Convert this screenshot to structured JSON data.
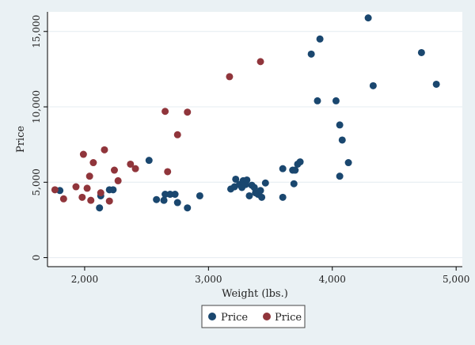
{
  "chart_data": {
    "type": "scatter",
    "title": "",
    "xlabel": "Weight (lbs.)",
    "ylabel": "Price",
    "xlim": [
      1700,
      5050
    ],
    "ylim": [
      -600,
      16300
    ],
    "x_ticks": [
      2000,
      3000,
      4000,
      5000
    ],
    "x_tick_labels": [
      "2,000",
      "3,000",
      "4,000",
      "5,000"
    ],
    "y_ticks": [
      0,
      5000,
      10000,
      15000
    ],
    "y_tick_labels": [
      "0",
      "5,000",
      "10,000",
      "15,000"
    ],
    "grid": true,
    "legend": "bottom",
    "series": [
      {
        "name": "Price",
        "color": "#1a476f",
        "points": [
          [
            1800,
            4450
          ],
          [
            2120,
            3300
          ],
          [
            2130,
            4100
          ],
          [
            2200,
            4500
          ],
          [
            2230,
            4500
          ],
          [
            2520,
            6450
          ],
          [
            2580,
            3850
          ],
          [
            2640,
            3800
          ],
          [
            2650,
            4200
          ],
          [
            2690,
            4200
          ],
          [
            2730,
            4200
          ],
          [
            2750,
            3650
          ],
          [
            2830,
            3300
          ],
          [
            2930,
            4100
          ],
          [
            3180,
            4550
          ],
          [
            3210,
            4700
          ],
          [
            3220,
            5200
          ],
          [
            3250,
            4850
          ],
          [
            3270,
            4650
          ],
          [
            3280,
            5100
          ],
          [
            3300,
            4850
          ],
          [
            3310,
            5150
          ],
          [
            3330,
            4100
          ],
          [
            3350,
            4800
          ],
          [
            3370,
            4650
          ],
          [
            3380,
            4300
          ],
          [
            3400,
            4200
          ],
          [
            3420,
            4450
          ],
          [
            3430,
            4000
          ],
          [
            3460,
            4950
          ],
          [
            3600,
            5900
          ],
          [
            3600,
            4000
          ],
          [
            3680,
            5800
          ],
          [
            3690,
            4900
          ],
          [
            3700,
            5800
          ],
          [
            3720,
            6200
          ],
          [
            3740,
            6350
          ],
          [
            3830,
            13500
          ],
          [
            3880,
            10400
          ],
          [
            3900,
            14500
          ],
          [
            4030,
            10400
          ],
          [
            4060,
            8800
          ],
          [
            4060,
            5400
          ],
          [
            4080,
            7800
          ],
          [
            4130,
            6300
          ],
          [
            4290,
            15900
          ],
          [
            4330,
            11400
          ],
          [
            4720,
            13600
          ],
          [
            4840,
            11500
          ]
        ]
      },
      {
        "name": "Price",
        "color": "#90353b",
        "points": [
          [
            1760,
            4500
          ],
          [
            1830,
            3900
          ],
          [
            1930,
            4700
          ],
          [
            1980,
            4000
          ],
          [
            1990,
            6850
          ],
          [
            2020,
            4600
          ],
          [
            2040,
            5400
          ],
          [
            2050,
            3800
          ],
          [
            2070,
            6300
          ],
          [
            2130,
            4300
          ],
          [
            2160,
            7150
          ],
          [
            2200,
            3750
          ],
          [
            2240,
            5800
          ],
          [
            2270,
            5100
          ],
          [
            2370,
            6200
          ],
          [
            2410,
            5900
          ],
          [
            2650,
            9700
          ],
          [
            2670,
            5700
          ],
          [
            2750,
            8150
          ],
          [
            2830,
            9650
          ],
          [
            3170,
            12000
          ],
          [
            3420,
            13000
          ]
        ]
      }
    ]
  }
}
